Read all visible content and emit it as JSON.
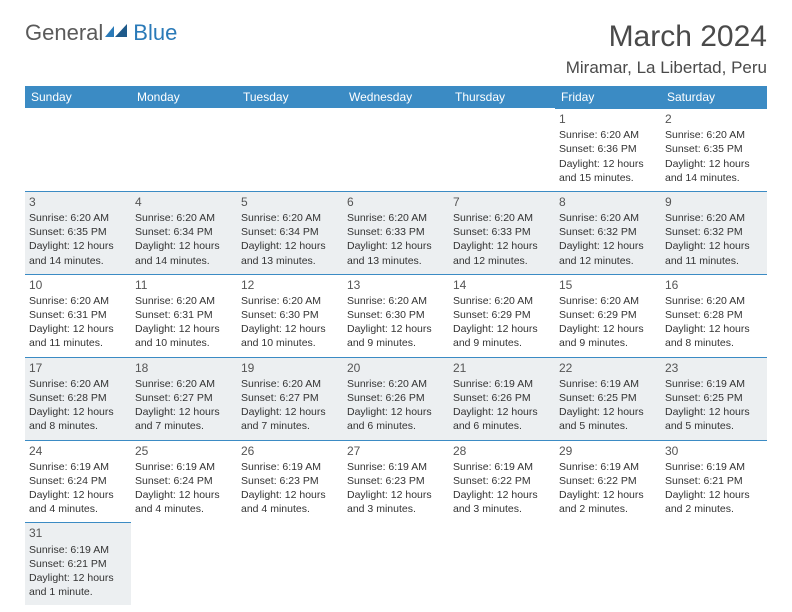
{
  "brand": {
    "general": "General",
    "blue": "Blue"
  },
  "title": "March 2024",
  "location": "Miramar, La Libertad, Peru",
  "colors": {
    "header_bg": "#3b8bc4",
    "header_text": "#ffffff",
    "odd_row_bg": "#eceff1",
    "border": "#3b8bc4",
    "logo_gray": "#5a5a5a",
    "logo_blue": "#2a7ab8",
    "title_color": "#4a4a4a"
  },
  "day_names": [
    "Sunday",
    "Monday",
    "Tuesday",
    "Wednesday",
    "Thursday",
    "Friday",
    "Saturday"
  ],
  "weeks": [
    [
      {
        "blank": true
      },
      {
        "blank": true
      },
      {
        "blank": true
      },
      {
        "blank": true
      },
      {
        "blank": true
      },
      {
        "day": "1",
        "sunrise": "Sunrise: 6:20 AM",
        "sunset": "Sunset: 6:36 PM",
        "daylight": "Daylight: 12 hours and 15 minutes."
      },
      {
        "day": "2",
        "sunrise": "Sunrise: 6:20 AM",
        "sunset": "Sunset: 6:35 PM",
        "daylight": "Daylight: 12 hours and 14 minutes."
      }
    ],
    [
      {
        "day": "3",
        "sunrise": "Sunrise: 6:20 AM",
        "sunset": "Sunset: 6:35 PM",
        "daylight": "Daylight: 12 hours and 14 minutes."
      },
      {
        "day": "4",
        "sunrise": "Sunrise: 6:20 AM",
        "sunset": "Sunset: 6:34 PM",
        "daylight": "Daylight: 12 hours and 14 minutes."
      },
      {
        "day": "5",
        "sunrise": "Sunrise: 6:20 AM",
        "sunset": "Sunset: 6:34 PM",
        "daylight": "Daylight: 12 hours and 13 minutes."
      },
      {
        "day": "6",
        "sunrise": "Sunrise: 6:20 AM",
        "sunset": "Sunset: 6:33 PM",
        "daylight": "Daylight: 12 hours and 13 minutes."
      },
      {
        "day": "7",
        "sunrise": "Sunrise: 6:20 AM",
        "sunset": "Sunset: 6:33 PM",
        "daylight": "Daylight: 12 hours and 12 minutes."
      },
      {
        "day": "8",
        "sunrise": "Sunrise: 6:20 AM",
        "sunset": "Sunset: 6:32 PM",
        "daylight": "Daylight: 12 hours and 12 minutes."
      },
      {
        "day": "9",
        "sunrise": "Sunrise: 6:20 AM",
        "sunset": "Sunset: 6:32 PM",
        "daylight": "Daylight: 12 hours and 11 minutes."
      }
    ],
    [
      {
        "day": "10",
        "sunrise": "Sunrise: 6:20 AM",
        "sunset": "Sunset: 6:31 PM",
        "daylight": "Daylight: 12 hours and 11 minutes."
      },
      {
        "day": "11",
        "sunrise": "Sunrise: 6:20 AM",
        "sunset": "Sunset: 6:31 PM",
        "daylight": "Daylight: 12 hours and 10 minutes."
      },
      {
        "day": "12",
        "sunrise": "Sunrise: 6:20 AM",
        "sunset": "Sunset: 6:30 PM",
        "daylight": "Daylight: 12 hours and 10 minutes."
      },
      {
        "day": "13",
        "sunrise": "Sunrise: 6:20 AM",
        "sunset": "Sunset: 6:30 PM",
        "daylight": "Daylight: 12 hours and 9 minutes."
      },
      {
        "day": "14",
        "sunrise": "Sunrise: 6:20 AM",
        "sunset": "Sunset: 6:29 PM",
        "daylight": "Daylight: 12 hours and 9 minutes."
      },
      {
        "day": "15",
        "sunrise": "Sunrise: 6:20 AM",
        "sunset": "Sunset: 6:29 PM",
        "daylight": "Daylight: 12 hours and 9 minutes."
      },
      {
        "day": "16",
        "sunrise": "Sunrise: 6:20 AM",
        "sunset": "Sunset: 6:28 PM",
        "daylight": "Daylight: 12 hours and 8 minutes."
      }
    ],
    [
      {
        "day": "17",
        "sunrise": "Sunrise: 6:20 AM",
        "sunset": "Sunset: 6:28 PM",
        "daylight": "Daylight: 12 hours and 8 minutes."
      },
      {
        "day": "18",
        "sunrise": "Sunrise: 6:20 AM",
        "sunset": "Sunset: 6:27 PM",
        "daylight": "Daylight: 12 hours and 7 minutes."
      },
      {
        "day": "19",
        "sunrise": "Sunrise: 6:20 AM",
        "sunset": "Sunset: 6:27 PM",
        "daylight": "Daylight: 12 hours and 7 minutes."
      },
      {
        "day": "20",
        "sunrise": "Sunrise: 6:20 AM",
        "sunset": "Sunset: 6:26 PM",
        "daylight": "Daylight: 12 hours and 6 minutes."
      },
      {
        "day": "21",
        "sunrise": "Sunrise: 6:19 AM",
        "sunset": "Sunset: 6:26 PM",
        "daylight": "Daylight: 12 hours and 6 minutes."
      },
      {
        "day": "22",
        "sunrise": "Sunrise: 6:19 AM",
        "sunset": "Sunset: 6:25 PM",
        "daylight": "Daylight: 12 hours and 5 minutes."
      },
      {
        "day": "23",
        "sunrise": "Sunrise: 6:19 AM",
        "sunset": "Sunset: 6:25 PM",
        "daylight": "Daylight: 12 hours and 5 minutes."
      }
    ],
    [
      {
        "day": "24",
        "sunrise": "Sunrise: 6:19 AM",
        "sunset": "Sunset: 6:24 PM",
        "daylight": "Daylight: 12 hours and 4 minutes."
      },
      {
        "day": "25",
        "sunrise": "Sunrise: 6:19 AM",
        "sunset": "Sunset: 6:24 PM",
        "daylight": "Daylight: 12 hours and 4 minutes."
      },
      {
        "day": "26",
        "sunrise": "Sunrise: 6:19 AM",
        "sunset": "Sunset: 6:23 PM",
        "daylight": "Daylight: 12 hours and 4 minutes."
      },
      {
        "day": "27",
        "sunrise": "Sunrise: 6:19 AM",
        "sunset": "Sunset: 6:23 PM",
        "daylight": "Daylight: 12 hours and 3 minutes."
      },
      {
        "day": "28",
        "sunrise": "Sunrise: 6:19 AM",
        "sunset": "Sunset: 6:22 PM",
        "daylight": "Daylight: 12 hours and 3 minutes."
      },
      {
        "day": "29",
        "sunrise": "Sunrise: 6:19 AM",
        "sunset": "Sunset: 6:22 PM",
        "daylight": "Daylight: 12 hours and 2 minutes."
      },
      {
        "day": "30",
        "sunrise": "Sunrise: 6:19 AM",
        "sunset": "Sunset: 6:21 PM",
        "daylight": "Daylight: 12 hours and 2 minutes."
      }
    ],
    [
      {
        "day": "31",
        "sunrise": "Sunrise: 6:19 AM",
        "sunset": "Sunset: 6:21 PM",
        "daylight": "Daylight: 12 hours and 1 minute."
      },
      {
        "blank": true
      },
      {
        "blank": true
      },
      {
        "blank": true
      },
      {
        "blank": true
      },
      {
        "blank": true
      },
      {
        "blank": true
      }
    ]
  ]
}
